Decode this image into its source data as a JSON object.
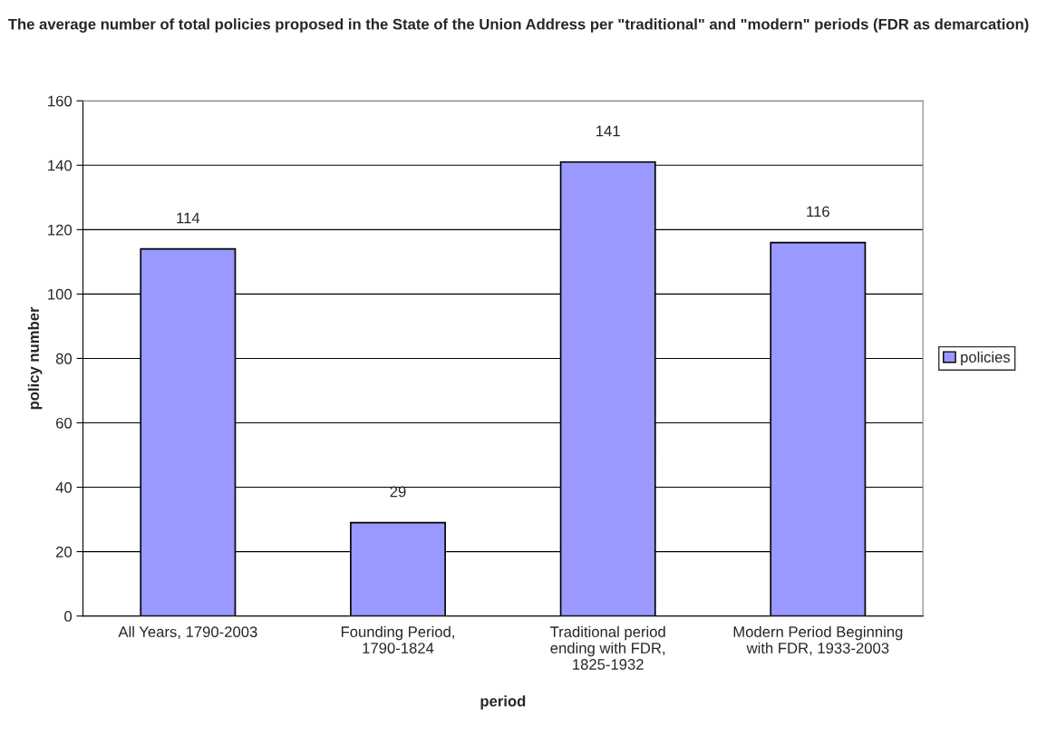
{
  "chart_data": {
    "type": "bar",
    "title": "The average number of total policies proposed in the State of the Union Address per \"traditional\" and \"modern\" periods (FDR as demarcation)",
    "xlabel": "period",
    "ylabel": "policy number",
    "categories": [
      "All Years, 1790-2003",
      "Founding Period, 1790-1824",
      "Traditional period ending with FDR, 1825-1932",
      "Modern Period Beginning with FDR, 1933-2003"
    ],
    "series": [
      {
        "name": "policies",
        "color": "#9999ff",
        "values": [
          114,
          29,
          141,
          116
        ]
      }
    ],
    "ylim": [
      0,
      160
    ],
    "yticks": [
      0,
      20,
      40,
      60,
      80,
      100,
      120,
      140,
      160
    ],
    "grid": "y",
    "legend": "right",
    "data_labels": true
  }
}
